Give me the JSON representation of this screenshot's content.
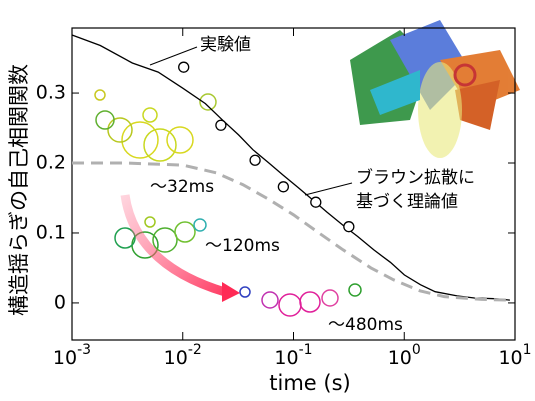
{
  "chart_data": {
    "type": "line",
    "xscale": "log",
    "y_label": "構造揺らぎの自己相関関数",
    "x_label": "time (s)",
    "xlim": [
      0.001,
      10
    ],
    "ylim": [
      -0.053,
      0.393
    ],
    "xticks": [
      {
        "value": 0.001,
        "label": "10-3"
      },
      {
        "value": 0.01,
        "label": "10-2"
      },
      {
        "value": 0.1,
        "label": "10-1"
      },
      {
        "value": 1,
        "label": "100"
      },
      {
        "value": 10,
        "label": "101"
      }
    ],
    "yticks": [
      0,
      0.1,
      0.2,
      0.3
    ],
    "annotations": [
      "実験値",
      "ブラウン拡散に",
      "基づく理論値",
      "～32ms",
      "～120ms",
      "～480ms"
    ],
    "series": [
      {
        "color": "#000000",
        "style": "solid",
        "x": [
          0.001,
          0.0018,
          0.0035,
          0.006,
          0.01,
          0.016,
          0.023,
          0.032,
          0.043,
          0.06,
          0.08,
          0.11,
          0.15,
          0.2,
          0.28,
          0.38,
          0.53,
          0.75,
          1.0,
          1.4,
          1.9,
          3.0,
          4.3,
          6.5,
          9
        ],
        "values": [
          0.383,
          0.368,
          0.343,
          0.33,
          0.307,
          0.285,
          0.261,
          0.24,
          0.219,
          0.2,
          0.183,
          0.165,
          0.147,
          0.13,
          0.111,
          0.095,
          0.076,
          0.058,
          0.04,
          0.026,
          0.016,
          0.01,
          0.007,
          0.006,
          0.004
        ]
      },
      {
        "color": "#b0b0b0",
        "style": "dashed",
        "x": [
          0.001,
          0.003,
          0.01,
          0.02,
          0.035,
          0.06,
          0.1,
          0.17,
          0.28,
          0.5,
          0.8,
          1.4,
          2.3,
          5,
          9
        ],
        "values": [
          0.2,
          0.2,
          0.197,
          0.186,
          0.169,
          0.148,
          0.126,
          0.1,
          0.076,
          0.05,
          0.033,
          0.017,
          0.009,
          0.005,
          0.004
        ]
      },
      {
        "color": "#000000",
        "style": "markers",
        "x": [
          0.0102,
          0.0221,
          0.045,
          0.081,
          0.159,
          0.316
        ],
        "values": [
          0.337,
          0.254,
          0.204,
          0.166,
          0.144,
          0.109
        ]
      }
    ]
  }
}
